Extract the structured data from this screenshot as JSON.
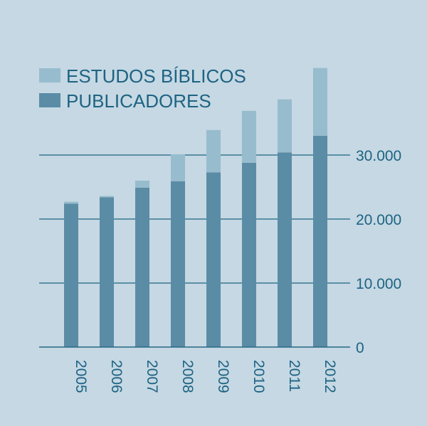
{
  "chart_data": {
    "type": "bar",
    "stacked": true,
    "categories": [
      "2005",
      "2006",
      "2007",
      "2008",
      "2009",
      "2010",
      "2011",
      "2012"
    ],
    "series": [
      {
        "name": "PUBLICADORES",
        "color": "#5a8ca5",
        "values": [
          22400,
          23400,
          24900,
          25900,
          27300,
          28800,
          30400,
          33000
        ]
      },
      {
        "name": "ESTUDOS BÍBLICOS",
        "color": "#97bccd",
        "values": [
          300,
          200,
          1100,
          4200,
          6600,
          8100,
          8300,
          10600
        ]
      }
    ],
    "ylim": [
      0,
      44000
    ],
    "yticks": [
      0,
      10000,
      20000,
      30000
    ],
    "ytick_labels": [
      "0",
      "10.000",
      "20.000",
      "30.000"
    ],
    "yaxis_position": "right",
    "grid": true,
    "legend_placement": "top-left",
    "legend_order": [
      "ESTUDOS BÍBLICOS",
      "PUBLICADORES"
    ],
    "background": "#c5d8e3",
    "text_color": "#1e6383"
  }
}
